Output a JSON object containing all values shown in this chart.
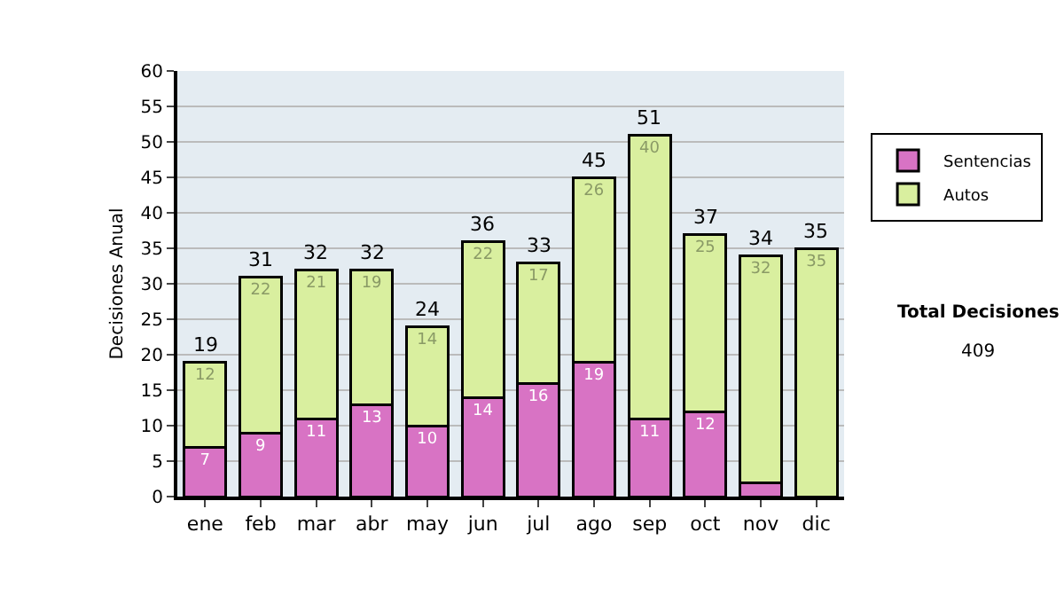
{
  "chart_data": {
    "type": "bar",
    "stacked": true,
    "ylabel": "Decisiones Anual",
    "categories": [
      "ene",
      "feb",
      "mar",
      "abr",
      "may",
      "jun",
      "jul",
      "ago",
      "sep",
      "oct",
      "nov",
      "dic"
    ],
    "series": [
      {
        "name": "Sentencias",
        "color": "#d873c4",
        "values": [
          7,
          9,
          11,
          13,
          10,
          14,
          16,
          19,
          11,
          12,
          2,
          0
        ],
        "value_labels": [
          "7",
          "9",
          "11",
          "13",
          "10",
          "14",
          "16",
          "19",
          "11",
          "12",
          null,
          null
        ]
      },
      {
        "name": "Autos",
        "color": "#d9ef9f",
        "values": [
          12,
          22,
          21,
          19,
          14,
          22,
          17,
          26,
          40,
          25,
          32,
          35
        ],
        "value_labels": [
          "12",
          "22",
          "21",
          "19",
          "14",
          "22",
          "17",
          "26",
          "40",
          "25",
          "32",
          "35"
        ]
      }
    ],
    "totals": [
      "19",
      "31",
      "32",
      "32",
      "24",
      "36",
      "33",
      "45",
      "51",
      "37",
      "34",
      "35"
    ],
    "ylim": [
      0,
      60
    ],
    "yticks": [
      0,
      5,
      10,
      15,
      20,
      25,
      30,
      35,
      40,
      45,
      50,
      55,
      60
    ],
    "grid": "y",
    "legend": "right",
    "annotations": [
      "Total Decisiones",
      "409"
    ]
  }
}
